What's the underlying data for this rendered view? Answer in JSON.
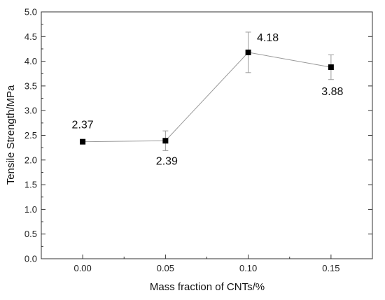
{
  "chart_data": {
    "type": "line",
    "x": [
      0.0,
      0.05,
      0.1,
      0.15
    ],
    "x_tick_labels": [
      "0.00",
      "0.05",
      "0.10",
      "0.15"
    ],
    "y_tick_labels": [
      "0.0",
      "0.5",
      "1.0",
      "1.5",
      "2.0",
      "2.5",
      "3.0",
      "3.5",
      "4.0",
      "4.5",
      "5.0"
    ],
    "series": [
      {
        "values": [
          2.37,
          2.39,
          4.18,
          3.88
        ],
        "error_low": [
          2.37,
          2.19,
          3.77,
          3.63
        ],
        "error_high": [
          2.37,
          2.59,
          4.59,
          4.13
        ],
        "data_labels": [
          "2.37",
          "2.39",
          "4.18",
          "3.88"
        ],
        "marker": "square",
        "line_color": "#999999",
        "marker_color": "#000000"
      }
    ],
    "xlabel": "Mass fraction of CNTs/%",
    "ylabel": "Tensile Strength/MPa",
    "xlim": [
      -0.025,
      0.175
    ],
    "ylim": [
      0,
      5
    ],
    "grid": false,
    "legend": false
  }
}
